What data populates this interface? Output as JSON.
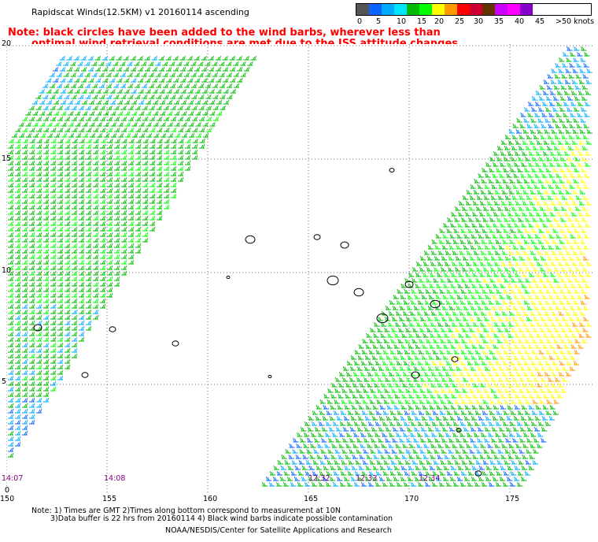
{
  "title": "Rapidscat Winds(12.5KM) v1 20160114 ascending",
  "note": {
    "line1": "Note: black circles have been added to the wind barbs, wherever less than",
    "line2": "optimal wind retrieval conditions are met due to the ISS attitude changes."
  },
  "legend": {
    "labels": [
      "0",
      "5",
      "10",
      "15",
      "20",
      "25",
      "30",
      "35",
      "40",
      "45",
      ">50 knots"
    ],
    "colors": [
      "#555555",
      "#0a64ff",
      "#00aaff",
      "#00e5ff",
      "#00bb00",
      "#00ff00",
      "#ffff00",
      "#ff9900",
      "#ff0000",
      "#cc0033",
      "#663300",
      "#cc00ff",
      "#ff00ff",
      "#8800cc"
    ]
  },
  "axes": {
    "lat_labels": [
      "20",
      "15",
      "10",
      "5",
      "0"
    ],
    "lon_labels": [
      "150",
      "155",
      "160",
      "165",
      "170",
      "175"
    ]
  },
  "times": [
    "14:07",
    "14:08",
    "12:32",
    "12:33",
    "12:34"
  ],
  "footer": {
    "line1": "Note: 1) Times are GMT 2)Times along bottom correspond to measurement at 10N",
    "line2": "3)Data buffer is 22 hrs from 20160114 4) Black wind barbs indicate possible contamination",
    "line3": "NOAA/NESDIS/Center for Satellite Applications and Research"
  }
}
